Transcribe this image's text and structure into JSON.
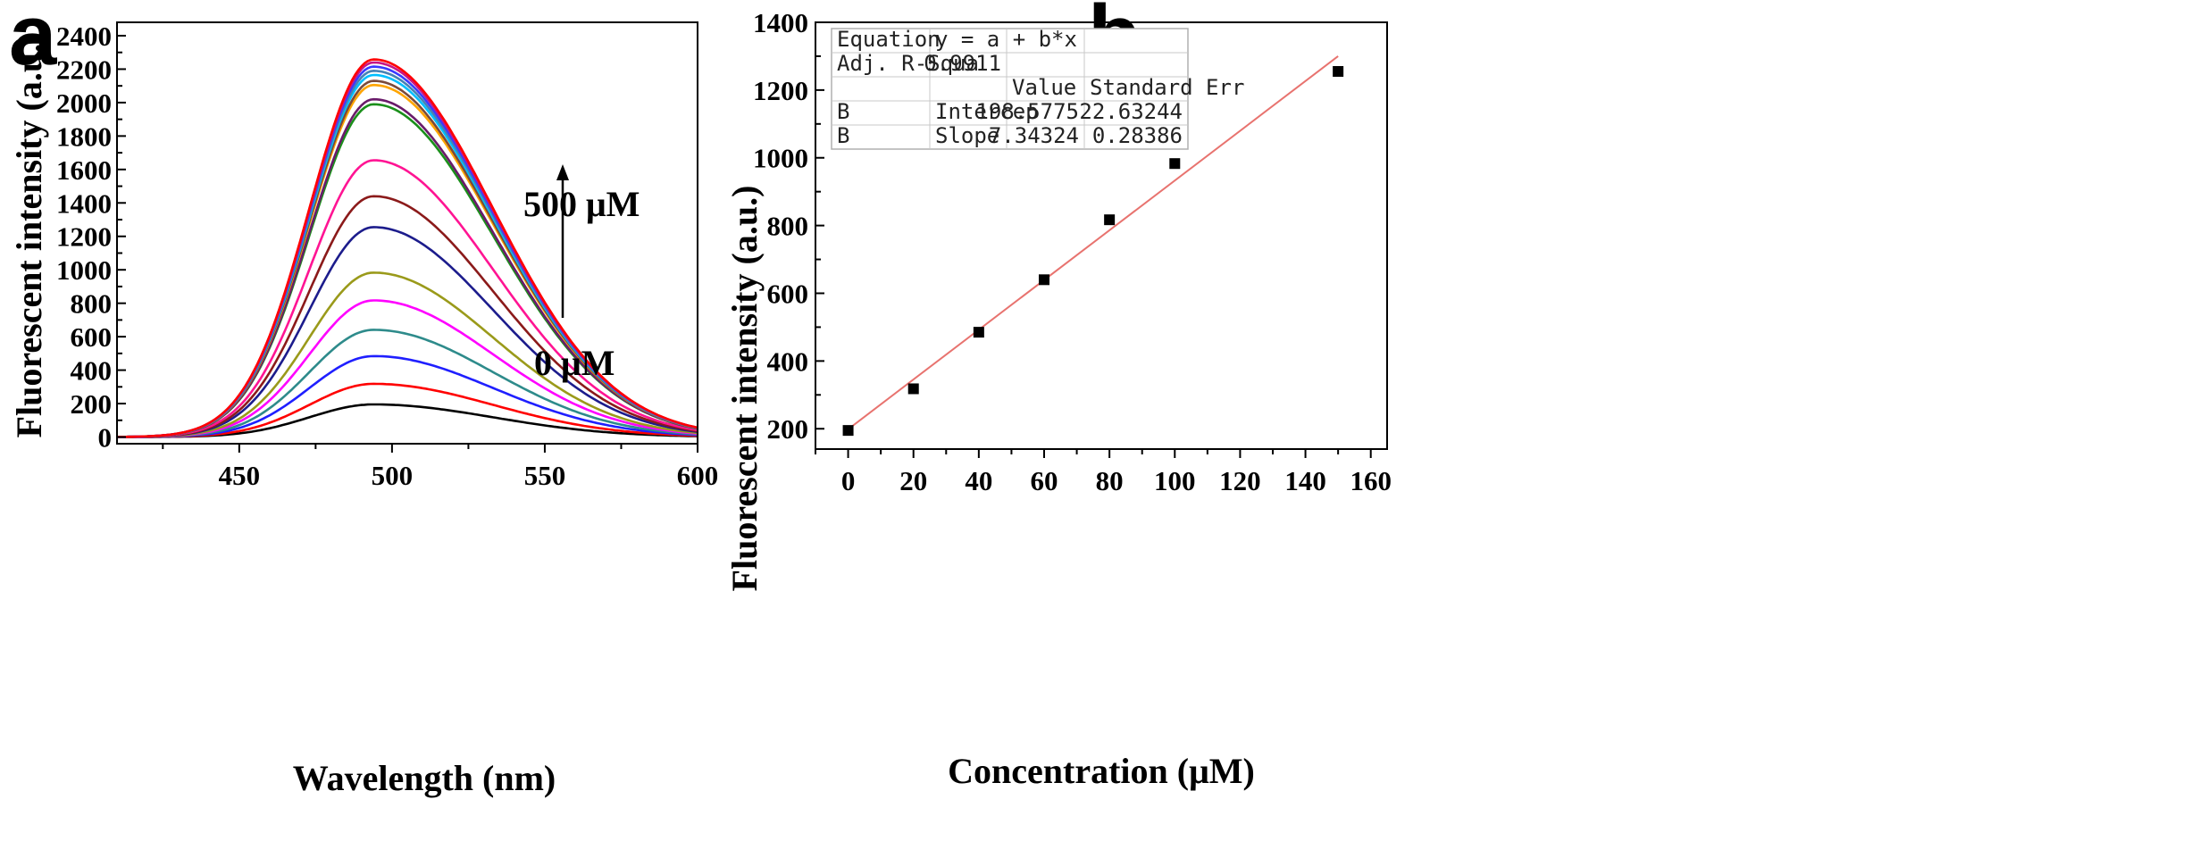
{
  "figure": {
    "panel_a_label": "a",
    "panel_b_label": "b"
  },
  "chart_data": [
    {
      "type": "line",
      "panel": "a",
      "title": "",
      "xlabel": "Wavelength (nm)",
      "ylabel": "Fluorescent intensity (a.u.)",
      "xlim": [
        410,
        600
      ],
      "ylim": [
        -40,
        2480
      ],
      "xticks": [
        450,
        500,
        550,
        600
      ],
      "yticks": [
        0,
        200,
        400,
        600,
        800,
        1000,
        1200,
        1400,
        1600,
        1800,
        2000,
        2200,
        2400
      ],
      "annotations": {
        "top": "500 μM",
        "bottom": "0 μM"
      },
      "curve_shape": {
        "peak_nm": 494,
        "sigma_left_nm": 21,
        "sigma_right_nm": 39
      },
      "series": [
        {
          "peak": 195,
          "color": "#000000"
        },
        {
          "peak": 318,
          "color": "#ff0000"
        },
        {
          "peak": 484,
          "color": "#1f1fff"
        },
        {
          "peak": 641,
          "color": "#2e8b8b"
        },
        {
          "peak": 817,
          "color": "#ff00ff"
        },
        {
          "peak": 983,
          "color": "#9a9a1a"
        },
        {
          "peak": 1255,
          "color": "#1c1c8c"
        },
        {
          "peak": 1440,
          "color": "#8b1a1a"
        },
        {
          "peak": 1655,
          "color": "#ff1493"
        },
        {
          "peak": 1990,
          "color": "#1a8f1a"
        },
        {
          "peak": 2020,
          "color": "#6a1b6a"
        },
        {
          "peak": 2105,
          "color": "#ffa500"
        },
        {
          "peak": 2130,
          "color": "#7a4a3a"
        },
        {
          "peak": 2165,
          "color": "#00bfff"
        },
        {
          "peak": 2190,
          "color": "#4682b4"
        },
        {
          "peak": 2215,
          "color": "#3a3aff"
        },
        {
          "peak": 2240,
          "color": "#c71585"
        },
        {
          "peak": 2258,
          "color": "#ff0000"
        }
      ]
    },
    {
      "type": "scatter",
      "panel": "b",
      "title": "",
      "xlabel": "Concentration (μM)",
      "ylabel": "Fluorescent intensity (a.u.)",
      "xlim": [
        -10,
        165
      ],
      "ylim": [
        140,
        1400
      ],
      "xticks": [
        0,
        20,
        40,
        60,
        80,
        100,
        120,
        140,
        160
      ],
      "yticks": [
        200,
        400,
        600,
        800,
        1000,
        1200,
        1400
      ],
      "points": [
        {
          "x": 0,
          "y": 195
        },
        {
          "x": 20,
          "y": 318
        },
        {
          "x": 40,
          "y": 485
        },
        {
          "x": 60,
          "y": 640
        },
        {
          "x": 80,
          "y": 817
        },
        {
          "x": 100,
          "y": 983
        },
        {
          "x": 150,
          "y": 1255
        }
      ],
      "fit_line": {
        "x_range": [
          0,
          150
        ],
        "intercept": 198.5775,
        "slope": 7.34324,
        "color": "#e8736f"
      },
      "fit_table": [
        [
          "Equation",
          "y = a + b*x",
          "",
          ""
        ],
        [
          "Adj. R-Squa",
          "0.9911",
          "",
          ""
        ],
        [
          "",
          "",
          "Value",
          "Standard Err"
        ],
        [
          "B",
          "Intercep",
          "198.5775",
          "22.63244"
        ],
        [
          "B",
          "Slope",
          "7.34324",
          "0.28386"
        ]
      ]
    }
  ]
}
